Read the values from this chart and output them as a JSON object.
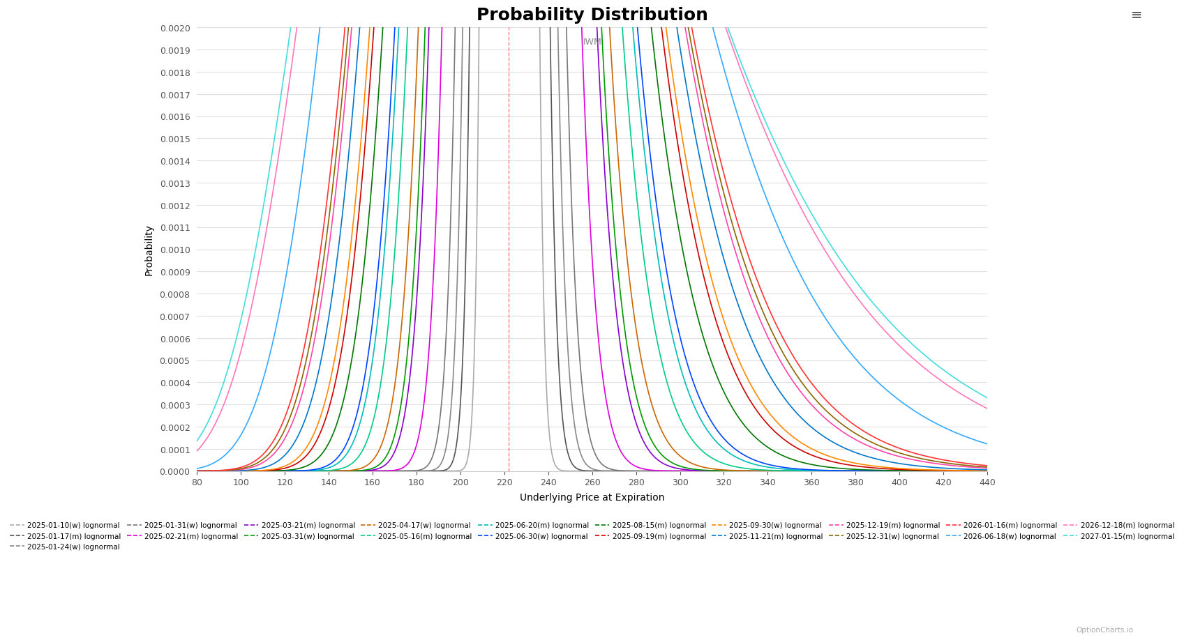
{
  "title": "Probability Distribution",
  "subtitle": "IWM",
  "xlabel": "Underlying Price at Expiration",
  "ylabel": "Probability",
  "current_price": 222,
  "x_min": 80,
  "x_max": 440,
  "y_min": 0,
  "y_max": 0.002,
  "y_ticks": [
    0,
    0.0001,
    0.0002,
    0.0003,
    0.0004,
    0.0005,
    0.0006,
    0.0007,
    0.0008,
    0.0009,
    0.001,
    0.0011,
    0.0012,
    0.0013,
    0.0014,
    0.0015,
    0.0016,
    0.0017,
    0.0018,
    0.0019,
    0.002
  ],
  "series": [
    {
      "label": "2025-01-10(w) lognormal",
      "sigma": 0.023,
      "color": "#aaaaaa"
    },
    {
      "label": "2025-01-17(m) lognormal",
      "sigma": 0.032,
      "color": "#555555"
    },
    {
      "label": "2025-01-24(w) lognormal",
      "sigma": 0.039,
      "color": "#888888"
    },
    {
      "label": "2025-01-31(w) lognormal",
      "sigma": 0.047,
      "color": "#777777"
    },
    {
      "label": "2025-02-21(m) lognormal",
      "sigma": 0.062,
      "color": "#dd00dd"
    },
    {
      "label": "2025-03-21(m) lognormal",
      "sigma": 0.078,
      "color": "#8800cc"
    },
    {
      "label": "2025-03-31(w) lognormal",
      "sigma": 0.083,
      "color": "#009900"
    },
    {
      "label": "2025-04-17(w) lognormal",
      "sigma": 0.092,
      "color": "#cc6600"
    },
    {
      "label": "2025-05-16(m) lognormal",
      "sigma": 0.107,
      "color": "#00cc88"
    },
    {
      "label": "2025-06-20(m) lognormal",
      "sigma": 0.12,
      "color": "#00bbbb"
    },
    {
      "label": "2025-06-30(w) lognormal",
      "sigma": 0.126,
      "color": "#0044ff"
    },
    {
      "label": "2025-08-15(m) lognormal",
      "sigma": 0.145,
      "color": "#007700"
    },
    {
      "label": "2025-09-19(m) lognormal",
      "sigma": 0.16,
      "color": "#cc0000"
    },
    {
      "label": "2025-09-30(w) lognormal",
      "sigma": 0.167,
      "color": "#ff8800"
    },
    {
      "label": "2025-11-21(m) lognormal",
      "sigma": 0.185,
      "color": "#0077cc"
    },
    {
      "label": "2025-12-19(m) lognormal",
      "sigma": 0.2,
      "color": "#ff44aa"
    },
    {
      "label": "2025-12-31(w) lognormal",
      "sigma": 0.206,
      "color": "#886600"
    },
    {
      "label": "2026-01-16(m) lognormal",
      "sigma": 0.213,
      "color": "#ff3333"
    },
    {
      "label": "2026-06-18(w) lognormal",
      "sigma": 0.265,
      "color": "#33aaff"
    },
    {
      "label": "2026-12-18(m) lognormal",
      "sigma": 0.318,
      "color": "#ff77bb"
    },
    {
      "label": "2027-01-15(m) lognormal",
      "sigma": 0.333,
      "color": "#44dddd"
    }
  ],
  "background_color": "#ffffff",
  "grid_color": "#e0e0e0",
  "title_fontsize": 18,
  "label_fontsize": 10,
  "tick_fontsize": 9,
  "legend_fontsize": 7.5
}
